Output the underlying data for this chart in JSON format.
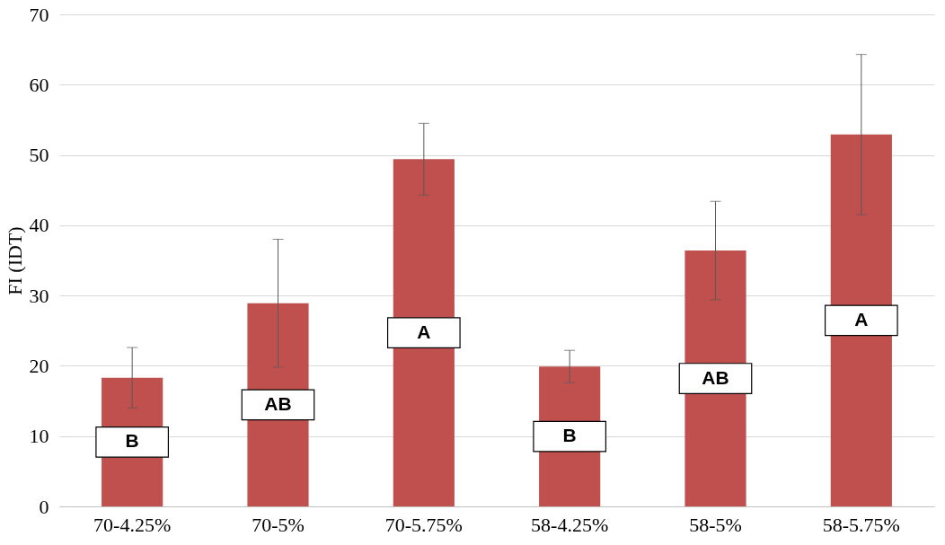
{
  "chart_data": {
    "type": "bar",
    "ylabel": "FI (IDT)",
    "categories": [
      "70-4.25%",
      "70-5%",
      "70-5.75%",
      "58-4.25%",
      "58-5%",
      "58-5.75%"
    ],
    "values": [
      18.3,
      28.9,
      49.4,
      19.9,
      36.4,
      52.9
    ],
    "errors": [
      4.3,
      9.1,
      5.1,
      2.3,
      7.0,
      11.4
    ],
    "color": "#c0504d",
    "ylim": [
      0,
      70
    ],
    "yticks": [
      0,
      10,
      20,
      30,
      40,
      50,
      60,
      70
    ],
    "grid": "y",
    "annotations": [
      "B",
      "AB",
      "A",
      "B",
      "AB",
      "A"
    ]
  }
}
